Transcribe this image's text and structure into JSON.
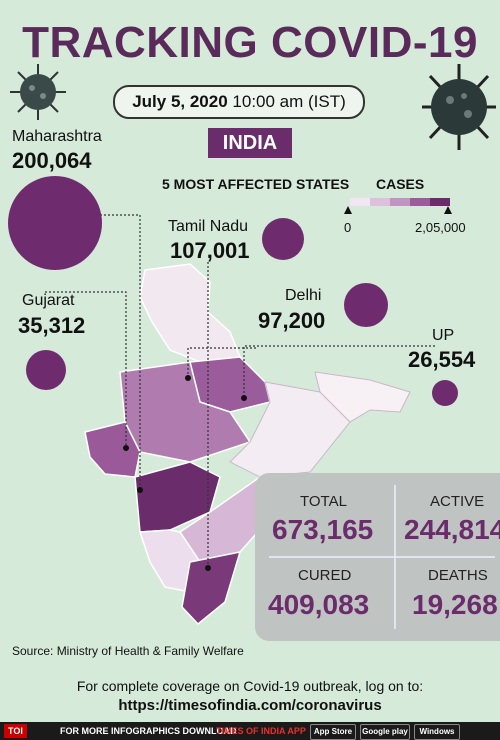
{
  "title": "TRACKING COVID-19",
  "date": {
    "bold": "July 5, 2020",
    "time": "10:00 am (IST)"
  },
  "country": "INDIA",
  "section_title": "5 MOST AFFECTED STATES",
  "legend": {
    "label": "CASES",
    "min": "0",
    "max": "2,05,000",
    "colors": [
      "#f2e6f2",
      "#dcc0dc",
      "#c294c2",
      "#9b5c9b",
      "#6b2c6b"
    ]
  },
  "states": [
    {
      "name": "Maharashtra",
      "value": "200,064"
    },
    {
      "name": "Tamil Nadu",
      "value": "107,001"
    },
    {
      "name": "Delhi",
      "value": "97,200"
    },
    {
      "name": "Gujarat",
      "value": "35,312"
    },
    {
      "name": "UP",
      "value": "26,554"
    }
  ],
  "stats": {
    "total": {
      "label": "TOTAL",
      "value": "673,165"
    },
    "active": {
      "label": "ACTIVE",
      "value": "244,814"
    },
    "cured": {
      "label": "CURED",
      "value": "409,083"
    },
    "deaths": {
      "label": "DEATHS",
      "value": "19,268"
    }
  },
  "source": "Source: Ministry of Health & Family Welfare",
  "footer": {
    "line1": "For complete coverage on Covid-19 outbreak, log on to:",
    "line2": "https://timesofindia.com/coronavirus"
  },
  "bottombar": {
    "logo": "TOI",
    "text1": "FOR MORE  INFOGRAPHICS DOWNLOAD",
    "text2": "TIMES OF INDIA  APP",
    "store1": "App Store",
    "store2": "Google play",
    "store3": "Windows"
  },
  "colors": {
    "accent": "#6b2c6b",
    "background": "#d6ead9"
  }
}
